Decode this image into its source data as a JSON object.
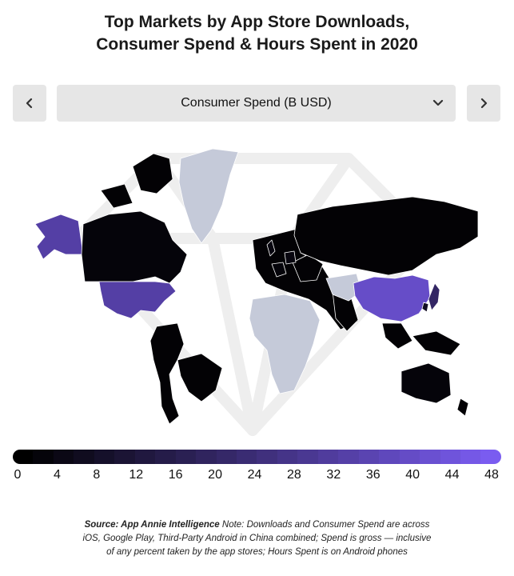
{
  "title": {
    "line1": "Top Markets by App Store Downloads,",
    "line2": "Consumer Spend & Hours Spent in 2020"
  },
  "controls": {
    "prev_icon": "chevron-left-icon",
    "next_icon": "chevron-right-icon",
    "dropdown_icon": "chevron-down-icon",
    "selected_metric": "Consumer Spend (B USD)"
  },
  "map": {
    "metric": "Consumer Spend (B USD)",
    "no_data_color": "#c5cad9",
    "markets": [
      {
        "region": "China",
        "value": 40
      },
      {
        "region": "United States",
        "value": 33
      },
      {
        "region": "Alaska",
        "value": 33
      },
      {
        "region": "Japan",
        "value": 20
      },
      {
        "region": "South Korea",
        "value": 7
      },
      {
        "region": "Germany",
        "value": 3
      },
      {
        "region": "United Kingdom",
        "value": 3
      },
      {
        "region": "Canada",
        "value": 2
      },
      {
        "region": "France",
        "value": 2
      },
      {
        "region": "Australia",
        "value": 2
      },
      {
        "region": "Russia",
        "value": 1
      },
      {
        "region": "Brazil",
        "value": 1
      }
    ]
  },
  "legend": {
    "min": 0,
    "max": 48,
    "color_low": "#000000",
    "color_high": "#7a5cf0",
    "ticks": [
      "0",
      "4",
      "8",
      "12",
      "16",
      "20",
      "24",
      "28",
      "32",
      "36",
      "40",
      "44",
      "48"
    ]
  },
  "footnote": {
    "source_label": "Source: App Annie Intelligence",
    "line1": " Note: Downloads and Consumer Spend are across",
    "line2": "iOS, Google Play, Third-Party Android in China combined; Spend is gross — inclusive",
    "line3": "of any percent taken by the app stores; Hours Spent is on Android phones"
  }
}
